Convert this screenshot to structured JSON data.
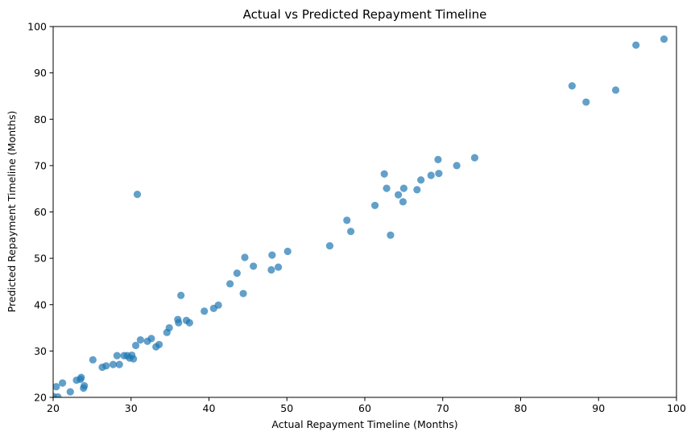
{
  "chart_data": {
    "type": "scatter",
    "title": "Actual vs Predicted Repayment Timeline",
    "xlabel": "Actual Repayment Timeline (Months)",
    "ylabel": "Predicted Repayment Timeline (Months)",
    "xlim": [
      20,
      100
    ],
    "ylim": [
      20,
      100
    ],
    "xticks": [
      20,
      30,
      40,
      50,
      60,
      70,
      80,
      90,
      100
    ],
    "yticks": [
      20,
      30,
      40,
      50,
      60,
      70,
      80,
      90,
      100
    ],
    "grid": false,
    "marker_color": "#1f77b4",
    "marker_alpha": 0.7,
    "points": [
      {
        "x": 98.4,
        "y": 97.3
      },
      {
        "x": 94.8,
        "y": 96.0
      },
      {
        "x": 86.6,
        "y": 87.2
      },
      {
        "x": 92.2,
        "y": 86.3
      },
      {
        "x": 88.4,
        "y": 83.7
      },
      {
        "x": 74.1,
        "y": 71.7
      },
      {
        "x": 69.4,
        "y": 71.3
      },
      {
        "x": 71.8,
        "y": 70.0
      },
      {
        "x": 69.5,
        "y": 68.3
      },
      {
        "x": 68.5,
        "y": 67.9
      },
      {
        "x": 62.5,
        "y": 68.2
      },
      {
        "x": 67.2,
        "y": 66.9
      },
      {
        "x": 62.8,
        "y": 65.1
      },
      {
        "x": 65.0,
        "y": 65.1
      },
      {
        "x": 66.7,
        "y": 64.8
      },
      {
        "x": 64.3,
        "y": 63.7
      },
      {
        "x": 64.9,
        "y": 62.2
      },
      {
        "x": 61.3,
        "y": 61.4
      },
      {
        "x": 57.7,
        "y": 58.2
      },
      {
        "x": 58.2,
        "y": 55.8
      },
      {
        "x": 63.3,
        "y": 55.0
      },
      {
        "x": 55.5,
        "y": 52.7
      },
      {
        "x": 50.1,
        "y": 51.5
      },
      {
        "x": 48.1,
        "y": 50.7
      },
      {
        "x": 44.6,
        "y": 50.2
      },
      {
        "x": 45.7,
        "y": 48.3
      },
      {
        "x": 48.9,
        "y": 48.1
      },
      {
        "x": 48.0,
        "y": 47.5
      },
      {
        "x": 43.6,
        "y": 46.8
      },
      {
        "x": 42.7,
        "y": 44.5
      },
      {
        "x": 44.4,
        "y": 42.4
      },
      {
        "x": 36.4,
        "y": 42.0
      },
      {
        "x": 41.2,
        "y": 39.9
      },
      {
        "x": 40.6,
        "y": 39.2
      },
      {
        "x": 39.4,
        "y": 38.6
      },
      {
        "x": 36.0,
        "y": 36.8
      },
      {
        "x": 37.1,
        "y": 36.6
      },
      {
        "x": 37.5,
        "y": 36.1
      },
      {
        "x": 36.1,
        "y": 36.1
      },
      {
        "x": 34.9,
        "y": 35.0
      },
      {
        "x": 34.6,
        "y": 34.0
      },
      {
        "x": 30.8,
        "y": 63.8
      },
      {
        "x": 32.6,
        "y": 32.7
      },
      {
        "x": 31.2,
        "y": 32.4
      },
      {
        "x": 32.1,
        "y": 32.1
      },
      {
        "x": 33.6,
        "y": 31.4
      },
      {
        "x": 30.6,
        "y": 31.2
      },
      {
        "x": 33.2,
        "y": 30.9
      },
      {
        "x": 29.1,
        "y": 29.0
      },
      {
        "x": 28.2,
        "y": 29.0
      },
      {
        "x": 29.5,
        "y": 29.0
      },
      {
        "x": 30.1,
        "y": 29.1
      },
      {
        "x": 29.8,
        "y": 28.5
      },
      {
        "x": 30.3,
        "y": 28.3
      },
      {
        "x": 25.1,
        "y": 28.1
      },
      {
        "x": 28.5,
        "y": 27.1
      },
      {
        "x": 27.7,
        "y": 27.1
      },
      {
        "x": 26.8,
        "y": 26.8
      },
      {
        "x": 26.3,
        "y": 26.5
      },
      {
        "x": 23.6,
        "y": 24.3
      },
      {
        "x": 23.5,
        "y": 23.9
      },
      {
        "x": 23.0,
        "y": 23.7
      },
      {
        "x": 21.2,
        "y": 23.1
      },
      {
        "x": 20.4,
        "y": 22.3
      },
      {
        "x": 24.0,
        "y": 22.5
      },
      {
        "x": 23.9,
        "y": 22.0
      },
      {
        "x": 22.2,
        "y": 21.2
      },
      {
        "x": 20.6,
        "y": 20.1
      },
      {
        "x": 20.0,
        "y": 20.2
      }
    ]
  }
}
